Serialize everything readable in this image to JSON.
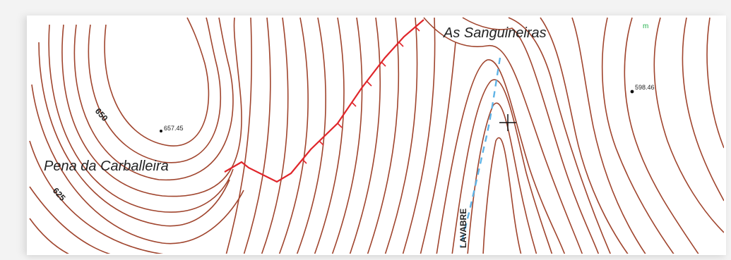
{
  "map": {
    "place_names": {
      "as_sanguineiras": "As Sanguineiras",
      "pena_da_carballeira": "Pena da Carballeira",
      "stream": "LAVABRE"
    },
    "contour_labels": {
      "label_650": "650",
      "label_625": "625"
    },
    "spot_heights": {
      "height_1": "657.45",
      "height_2": "598.46"
    },
    "corner_mark": "m",
    "colors": {
      "contour": "#a0452e",
      "boundary": "#e0262b",
      "stream": "#5fb3e6",
      "marker": "#22b14c"
    }
  }
}
